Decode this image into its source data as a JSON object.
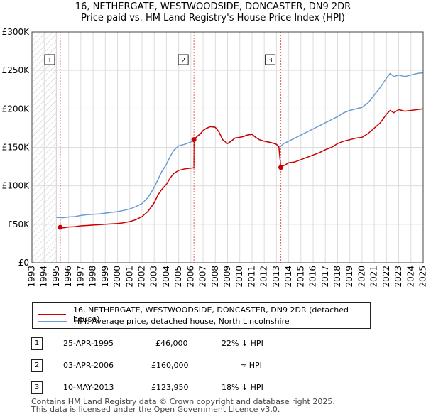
{
  "title_line1": "16, NETHERGATE, WESTWOODSIDE, DONCASTER, DN9 2DR",
  "title_line2": "Price paid vs. HM Land Registry's House Price Index (HPI)",
  "chart_data": {
    "type": "line",
    "xlim": [
      1993,
      2025
    ],
    "ylim": [
      0,
      300000
    ],
    "y_ticks": [
      0,
      50000,
      100000,
      150000,
      200000,
      250000,
      300000
    ],
    "y_tick_labels": [
      "£0",
      "£50K",
      "£100K",
      "£150K",
      "£200K",
      "£250K",
      "£300K"
    ],
    "x_tick_labels": [
      "1993",
      "1994",
      "1995",
      "1996",
      "1997",
      "1998",
      "1999",
      "2000",
      "2001",
      "2002",
      "2003",
      "2004",
      "2005",
      "2006",
      "2007",
      "2008",
      "2009",
      "2010",
      "2011",
      "2012",
      "2013",
      "2014",
      "2015",
      "2016",
      "2017",
      "2018",
      "2019",
      "2020",
      "2021",
      "2022",
      "2023",
      "2024",
      "2025"
    ],
    "grid": true,
    "hatched_until": 1995.0,
    "colors": {
      "property": "#cc0000",
      "hpi": "#6a9bd1",
      "marker_line": "#e06060"
    },
    "series": [
      {
        "name": "16, NETHERGATE, WESTWOODSIDE, DONCASTER, DN9 2DR (detached house)",
        "color": "#cc0000",
        "x": [
          1995.3,
          1995.6,
          1996,
          1996.5,
          1997,
          1997.5,
          1998,
          1998.5,
          1999,
          1999.5,
          2000,
          2000.5,
          2001,
          2001.5,
          2002,
          2002.5,
          2003,
          2003.3,
          2003.6,
          2004,
          2004.3,
          2004.6,
          2005,
          2005.5,
          2006,
          2006.25,
          2006.26,
          2006.5,
          2006.8,
          2007,
          2007.3,
          2007.6,
          2008,
          2008.3,
          2008.6,
          2009,
          2009.3,
          2009.6,
          2010,
          2010.3,
          2010.6,
          2011,
          2011.3,
          2011.6,
          2012,
          2012.3,
          2012.6,
          2013,
          2013.2,
          2013.36,
          2013.4,
          2013.7,
          2014,
          2014.5,
          2015,
          2015.5,
          2016,
          2016.5,
          2017,
          2017.5,
          2018,
          2018.5,
          2019,
          2019.5,
          2020,
          2020.5,
          2021,
          2021.5,
          2022,
          2022.3,
          2022.6,
          2023,
          2023.5,
          2024,
          2024.5,
          2025
        ],
        "values": [
          46000,
          45500,
          46500,
          47000,
          48000,
          48500,
          49000,
          49500,
          50000,
          50500,
          51000,
          52000,
          53500,
          56000,
          60000,
          67000,
          78000,
          88000,
          95000,
          102000,
          110000,
          116000,
          120000,
          122000,
          123000,
          123500,
          160000,
          164000,
          168000,
          172000,
          175000,
          177000,
          176000,
          170000,
          160000,
          155000,
          158000,
          162000,
          163000,
          164000,
          166000,
          167000,
          163000,
          160000,
          158000,
          157000,
          156000,
          154000,
          150000,
          123950,
          125000,
          127000,
          130000,
          131000,
          134000,
          137000,
          140000,
          143000,
          147000,
          150000,
          155000,
          158000,
          160000,
          162000,
          163000,
          168000,
          175000,
          182000,
          193000,
          198000,
          195000,
          199000,
          197000,
          198000,
          199000,
          200000
        ]
      },
      {
        "name": "HPI: Average price, detached house, North Lincolnshire",
        "color": "#6a9bd1",
        "x": [
          1995,
          1995.5,
          1996,
          1996.5,
          1997,
          1997.5,
          1998,
          1998.5,
          1999,
          1999.5,
          2000,
          2000.5,
          2001,
          2001.5,
          2002,
          2002.5,
          2003,
          2003.3,
          2003.6,
          2004,
          2004.3,
          2004.6,
          2005,
          2005.5,
          2006,
          2006.25,
          2006.5,
          2006.8,
          2007,
          2007.3,
          2007.6,
          2008,
          2008.3,
          2008.6,
          2009,
          2009.3,
          2009.6,
          2010,
          2010.3,
          2010.6,
          2011,
          2011.3,
          2011.6,
          2012,
          2012.3,
          2012.6,
          2013,
          2013.2,
          2013.36,
          2013.6,
          2014,
          2014.5,
          2015,
          2015.5,
          2016,
          2016.5,
          2017,
          2017.5,
          2018,
          2018.5,
          2019,
          2019.5,
          2020,
          2020.5,
          2021,
          2021.5,
          2022,
          2022.3,
          2022.6,
          2023,
          2023.5,
          2024,
          2024.5,
          2025
        ],
        "values": [
          59000,
          58500,
          59500,
          60000,
          61500,
          62500,
          63000,
          63500,
          64500,
          65500,
          66500,
          68000,
          70000,
          73000,
          77000,
          85000,
          98000,
          108000,
          118000,
          128000,
          138000,
          146000,
          152000,
          154000,
          157000,
          160000,
          164000,
          168000,
          172000,
          175000,
          177000,
          176000,
          170000,
          160000,
          155000,
          158000,
          162000,
          163000,
          164000,
          166000,
          167000,
          163000,
          160000,
          158000,
          157000,
          156000,
          154000,
          151000,
          151500,
          155000,
          158000,
          162000,
          166000,
          170000,
          174000,
          178000,
          182000,
          186000,
          190000,
          195000,
          198000,
          200000,
          202000,
          208000,
          218000,
          228000,
          240000,
          246000,
          242000,
          244000,
          242000,
          244000,
          246000,
          247000
        ]
      }
    ],
    "markers": [
      {
        "label": "1",
        "x": 1995.32,
        "value": 46000
      },
      {
        "label": "2",
        "x": 2006.25,
        "value": 160000
      },
      {
        "label": "3",
        "x": 2013.36,
        "value": 123950
      }
    ]
  },
  "legend": {
    "property_label": "16, NETHERGATE, WESTWOODSIDE, DONCASTER, DN9 2DR (detached house)",
    "hpi_label": "HPI: Average price, detached house, North Lincolnshire"
  },
  "transactions": [
    {
      "num": "1",
      "date": "25-APR-1995",
      "price": "£46,000",
      "hpi": "22% ↓ HPI"
    },
    {
      "num": "2",
      "date": "03-APR-2006",
      "price": "£160,000",
      "hpi": "≈ HPI"
    },
    {
      "num": "3",
      "date": "10-MAY-2013",
      "price": "£123,950",
      "hpi": "18% ↓ HPI"
    }
  ],
  "footer_line1": "Contains HM Land Registry data © Crown copyright and database right 2025.",
  "footer_line2": "This data is licensed under the Open Government Licence v3.0."
}
